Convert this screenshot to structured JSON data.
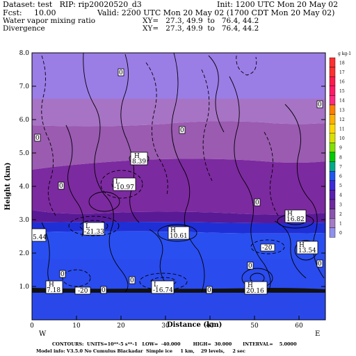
{
  "header": {
    "dataset_line": "Dataset: test   RIP: rip20020520_d3",
    "init_line": "Init: 1200 UTC Mon 20 May 02",
    "fcst_line": "Fcst:     10.00",
    "valid_line": "Valid: 2200 UTC Mon 20 May 02 (1700 CDT Mon 20 May 02)",
    "field1_name": "Water vapor mixing ratio",
    "field1_xy": "XY=   27.3, 49.9  to   76.4, 44.2",
    "field2_name": "Divergence",
    "field2_xy": "XY=   27.3, 49.9  to   76.4, 44.2"
  },
  "axes": {
    "ylabel": "Height (km)",
    "xlabel": "Distance (km)",
    "y_ticks": [
      "1.0",
      "2.0",
      "3.0",
      "4.0",
      "5.0",
      "6.0",
      "7.0",
      "8.0"
    ],
    "x_ticks": [
      "0",
      "10",
      "20",
      "30",
      "40",
      "50",
      "60"
    ],
    "left_end": "W",
    "right_end": "E"
  },
  "colorbar": {
    "unit": "g kg-1",
    "labels": [
      "18",
      "17",
      "16",
      "15",
      "14",
      "13",
      "12",
      "11",
      "10",
      "9",
      "8",
      "7",
      "6",
      "5",
      "4",
      "3",
      "2",
      "1",
      "0"
    ],
    "colors": [
      "#ff3030",
      "#ff3030",
      "#ff1a4d",
      "#ff1a66",
      "#ff2a80",
      "#ff7f00",
      "#ffb000",
      "#ffd700",
      "#d8e000",
      "#80e000",
      "#00cc00",
      "#00aa88",
      "#2255ee",
      "#3c2bd8",
      "#5a1fb0",
      "#6e2a9e",
      "#8a52ae",
      "#a67bc6",
      "#9090ee"
    ]
  },
  "bands": {
    "colors": [
      "#9b7de6",
      "#a773c5",
      "#9a5bb1",
      "#7c2aa0",
      "#5a1a96",
      "#1f2fd6",
      "#2a4ff0",
      "#2a47e8"
    ]
  },
  "annotations": {
    "highs_lows": [
      {
        "type": "H",
        "value": "8.39"
      },
      {
        "type": "L",
        "value": "-10.97"
      },
      {
        "type": "L",
        "value": "-21.33"
      },
      {
        "type": "H",
        "value": "10.61"
      },
      {
        "type": "H",
        "value": "16.82"
      },
      {
        "type": "H",
        "value": "13.54"
      },
      {
        "type": "H",
        "value": "7.18"
      },
      {
        "type": "L",
        "value": "-16.74"
      },
      {
        "type": "H",
        "value": "20.16"
      }
    ],
    "edge_values": [
      "5.44"
    ],
    "zero_labels": [
      "0",
      "0",
      "0",
      "0",
      "0",
      "0",
      "0",
      "0",
      "0",
      "0",
      "0",
      "0"
    ],
    "contour_labels": [
      "-20",
      "-20"
    ]
  },
  "footer": {
    "contours_line": "CONTOURS:  UNITS=10**-5 s**-1   LOW=  -40.000        HIGH=  30.000       INTERVAL=    5.0000",
    "model_info_line": "Model info: V3.5.0 No Cumulus Blackadar  Simple ice     1 km,    29 levels,     2 sec"
  }
}
